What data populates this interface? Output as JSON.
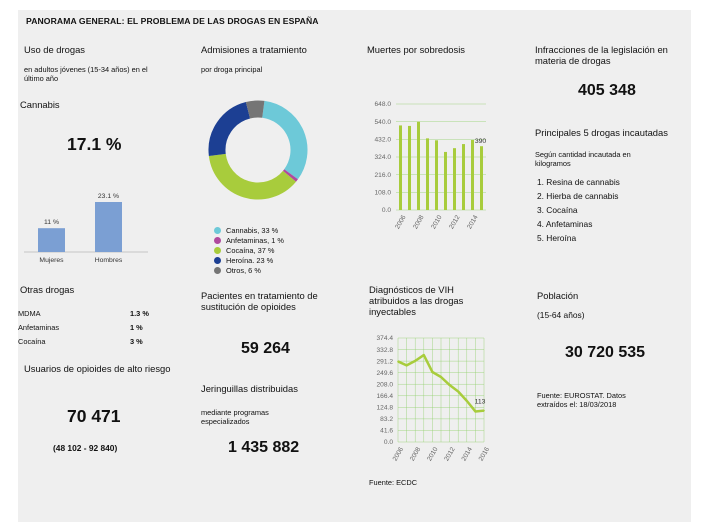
{
  "header": {
    "title": "PANORAMA GENERAL: EL PROBLEMA DE LAS DROGAS EN ESPAÑA"
  },
  "uso": {
    "title": "Uso de drogas",
    "subtitle": "en adultos jóvenes (15-34 años) en el último año",
    "cannabis_label": "Cannabis",
    "cannabis_value": "17.1 %"
  },
  "otras": {
    "title": "Otras drogas",
    "rows": [
      {
        "name": "MDMA",
        "value": "1.3 %"
      },
      {
        "name": "Anfetaminas",
        "value": "1 %"
      },
      {
        "name": "Cocaína",
        "value": "3 %"
      }
    ]
  },
  "usuarios": {
    "title": "Usuarios de opioides de alto riesgo",
    "value": "70 471",
    "range": "(48 102 - 92 840)"
  },
  "admisiones": {
    "title": "Admisiones a tratamiento",
    "subtitle": "por droga principal"
  },
  "pacientes": {
    "title": "Pacientes en tratamiento de sustitución de opioides",
    "value": "59 264"
  },
  "jeringuillas": {
    "title": "Jeringuillas distribuidas",
    "subtitle": "mediante programas especializados",
    "value": "1 435 882"
  },
  "muertes": {
    "title": "Muertes por sobredosis"
  },
  "vih": {
    "title": "Diagnósticos de VIH atribuidos a las drogas inyectables",
    "source": "Fuente: ECDC"
  },
  "infracciones": {
    "title": "Infracciones de la legislación en materia de drogas",
    "value": "405 348"
  },
  "incautadas": {
    "title": "Principales 5 drogas incautadas",
    "subtitle": "Según cantidad incautada en kilogramos",
    "items": [
      "1.  Resina de cannabis",
      "2.  Hierba de cannabis",
      "3.  Cocaína",
      "4.  Anfetaminas",
      "5.  Heroína"
    ]
  },
  "poblacion": {
    "title": "Población",
    "subtitle": "(15-64 años)",
    "value": "30 720 535",
    "source": "Fuente: EUROSTAT. Datos extraídos el: 18/03/2018"
  },
  "chart_data": [
    {
      "type": "bar",
      "categories": [
        "Mujeres",
        "Hombres"
      ],
      "values": [
        11,
        23.1
      ],
      "value_labels": [
        "11 %",
        "23.1 %"
      ],
      "color": "#7b9fd3"
    },
    {
      "type": "pie",
      "donut": true,
      "slices": [
        {
          "name": "Cannabis, 33 %",
          "value": 33,
          "color": "#6dc9d8"
        },
        {
          "name": "Anfetaminas, 1 %",
          "value": 1,
          "color": "#b04a9e"
        },
        {
          "name": "Cocaína, 37 %",
          "value": 37,
          "color": "#a8cc3c"
        },
        {
          "name": "Heroína. 23 %",
          "value": 23,
          "color": "#1c3f93"
        },
        {
          "name": "Otros, 6 %",
          "value": 6,
          "color": "#757575"
        }
      ]
    },
    {
      "type": "bar",
      "x": [
        2006,
        2007,
        2008,
        2009,
        2010,
        2011,
        2012,
        2013,
        2014,
        2015
      ],
      "x_tick_labels": [
        "2006",
        "2008",
        "2010",
        "2012",
        "2014"
      ],
      "values": [
        517,
        514,
        540,
        438,
        426,
        355,
        378,
        403,
        428,
        390
      ],
      "highlight_label": "390",
      "ylim": [
        0,
        648
      ],
      "yticks": [
        "648.0",
        "540.0",
        "432.0",
        "324.0",
        "216.0",
        "108.0",
        "0.0"
      ],
      "grid": true,
      "color": "#a8cc3c"
    },
    {
      "type": "line",
      "x": [
        2006,
        2007,
        2008,
        2009,
        2010,
        2011,
        2012,
        2013,
        2014,
        2015,
        2016
      ],
      "x_tick_labels": [
        "2006",
        "2008",
        "2010",
        "2012",
        "2014",
        "2016"
      ],
      "values": [
        290,
        276,
        292,
        313,
        252,
        234,
        205,
        182,
        148,
        110,
        113
      ],
      "end_label": "113",
      "ylim": [
        0,
        374.4
      ],
      "yticks": [
        "374.4",
        "332.8",
        "291.2",
        "249.6",
        "208.0",
        "166.4",
        "124.8",
        "83.2",
        "41.6",
        "0.0"
      ],
      "grid": true,
      "color": "#a8cc3c"
    }
  ]
}
